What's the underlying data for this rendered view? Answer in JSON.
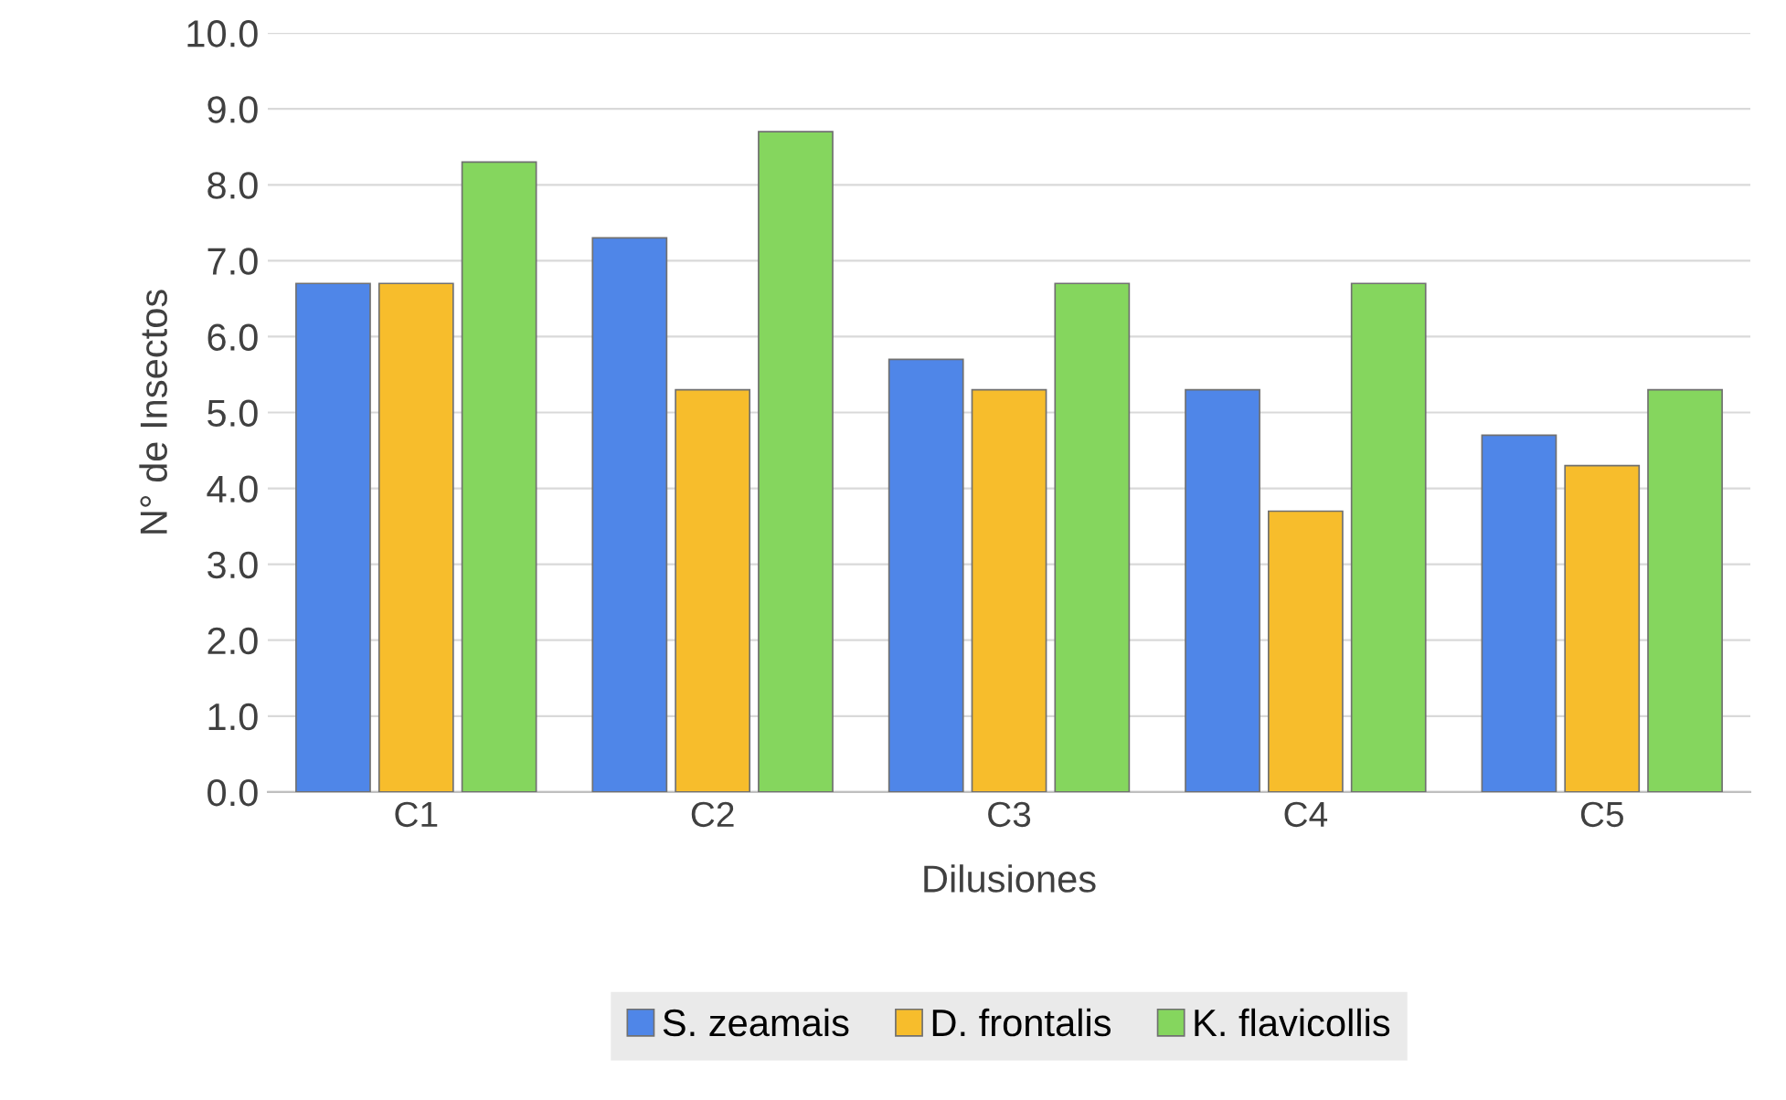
{
  "chart_data": {
    "type": "bar",
    "xlabel": "Dilusiones",
    "ylabel": "N° de Insectos",
    "categories": [
      "C1",
      "C2",
      "C3",
      "C4",
      "C5"
    ],
    "series": [
      {
        "name": "S. zeamais",
        "color": "#4f86e8",
        "values": [
          6.7,
          7.3,
          5.7,
          5.3,
          4.7
        ]
      },
      {
        "name": "D. frontalis",
        "color": "#f7bd2c",
        "values": [
          6.7,
          5.3,
          5.3,
          3.7,
          4.3
        ]
      },
      {
        "name": "K. flavicollis",
        "color": "#85d65e",
        "values": [
          8.3,
          8.7,
          6.7,
          6.7,
          5.3
        ]
      }
    ],
    "ylim": [
      0,
      10
    ],
    "yticks": [
      {
        "value": 0,
        "label": "0.0"
      },
      {
        "value": 1,
        "label": "1.0"
      },
      {
        "value": 2,
        "label": "2.0"
      },
      {
        "value": 3,
        "label": "3.0"
      },
      {
        "value": 4,
        "label": "4.0"
      },
      {
        "value": 5,
        "label": "5.0"
      },
      {
        "value": 6,
        "label": "6.0"
      },
      {
        "value": 7,
        "label": "7.0"
      },
      {
        "value": 8,
        "label": "8.0"
      },
      {
        "value": 9,
        "label": "9.0"
      },
      {
        "value": 10,
        "label": "10.0"
      }
    ],
    "grid": "y",
    "legend": "bottom"
  }
}
